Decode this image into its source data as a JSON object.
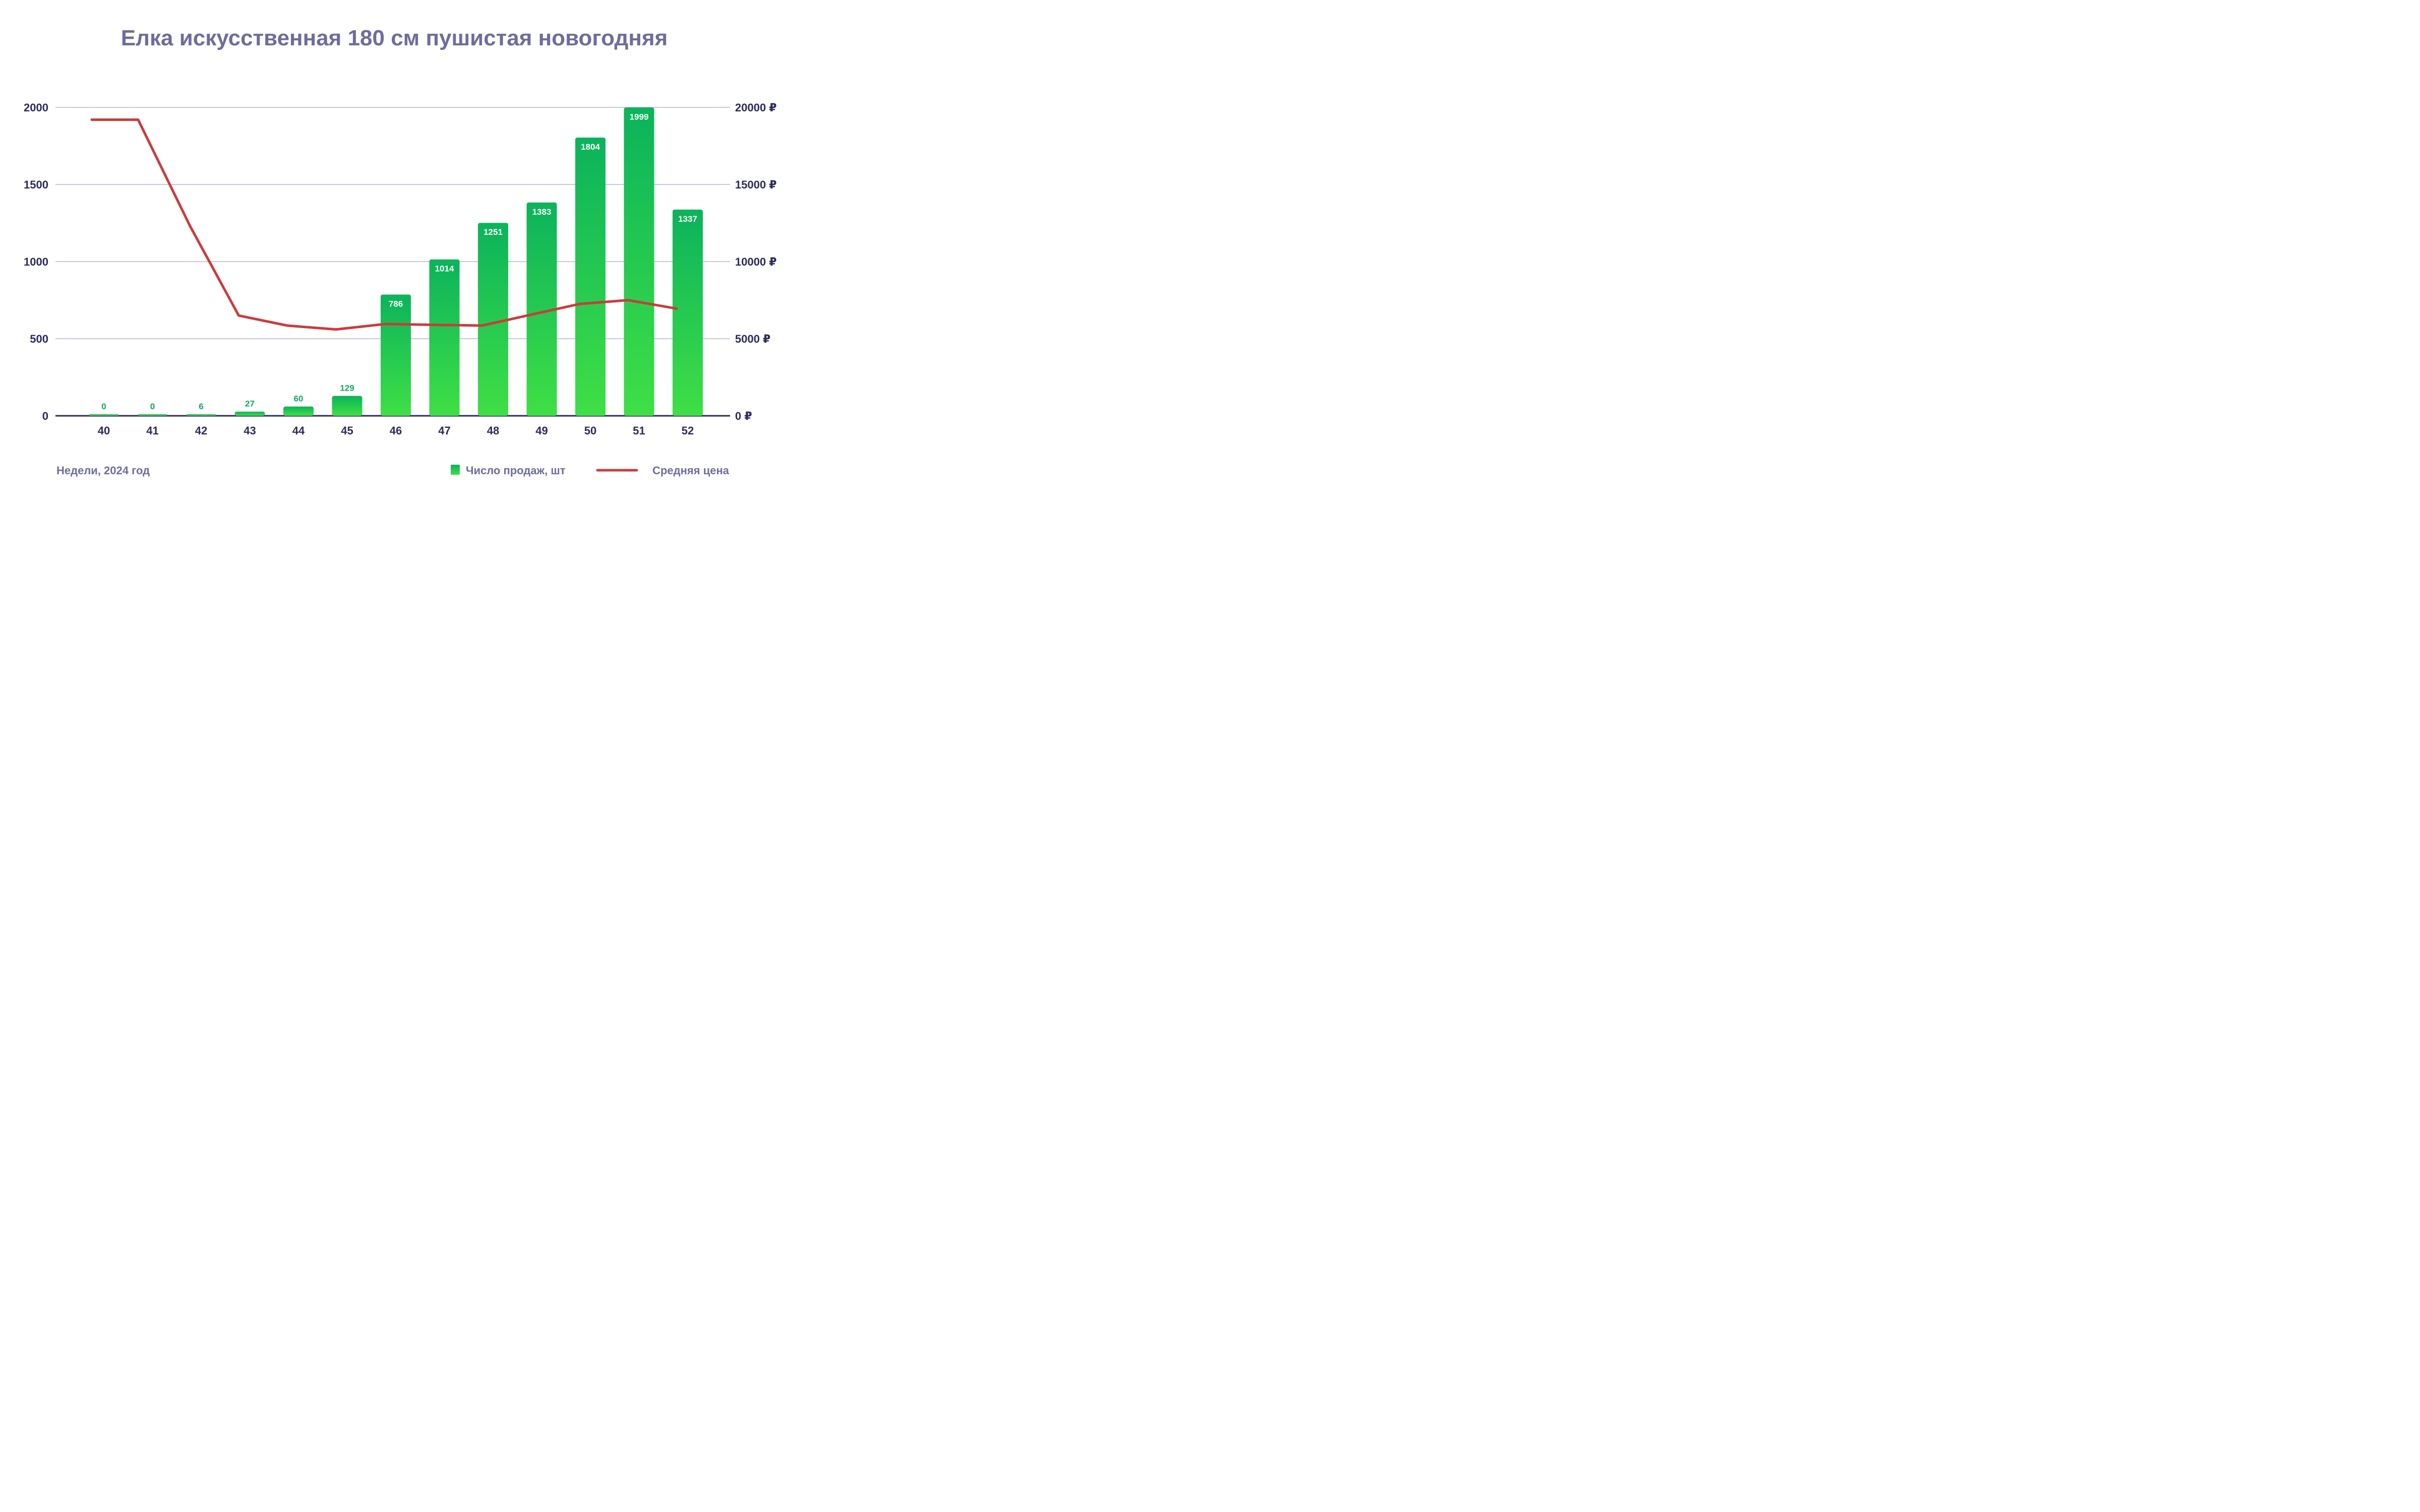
{
  "chart_data": {
    "type": "bar",
    "title": "Елка искусственная 180 см пушистая новогодняя",
    "xlabel": "Недели, 2024 год",
    "categories": [
      "40",
      "41",
      "42",
      "43",
      "44",
      "45",
      "46",
      "47",
      "48",
      "49",
      "50",
      "51",
      "52"
    ],
    "ylim": [
      0,
      2000
    ],
    "y_ticks": [
      "0",
      "500",
      "1000",
      "1500",
      "2000"
    ],
    "y2lim": [
      0,
      20000
    ],
    "y2_ticks": [
      "0 ₽",
      "5000 ₽",
      "10000 ₽",
      "15000 ₽",
      "20000 ₽"
    ],
    "grid": true,
    "legend_position": "bottom-right",
    "series": [
      {
        "name": "Число продаж, шт",
        "type": "bar",
        "axis": "left",
        "values": [
          0,
          0,
          6,
          27,
          60,
          129,
          786,
          1014,
          1251,
          1383,
          1804,
          1999,
          1337
        ],
        "labels": [
          "0",
          "0",
          "6",
          "27",
          "60",
          "129",
          "786",
          "1014",
          "1251",
          "1383",
          "1804",
          "1999",
          "1337"
        ]
      },
      {
        "name": "Средняя цена",
        "type": "line",
        "axis": "right",
        "values": [
          19200,
          19200,
          12300,
          6500,
          5850,
          5600,
          5950,
          5900,
          5850,
          6550,
          7250,
          7500,
          6950
        ]
      }
    ],
    "colors": {
      "title": "#6e6c9e",
      "axis_text": "#2b2a5c",
      "grid": "#c9c7da",
      "axis_line": "#2b2a5c",
      "bar_top": "#0bb35b",
      "bar_bottom": "#3fdf45",
      "bar_label_inside": "#ffffff",
      "bar_label_outside": "#10a85a",
      "line": "#cc3b3b",
      "footer_text": "#6e6c9e"
    }
  }
}
